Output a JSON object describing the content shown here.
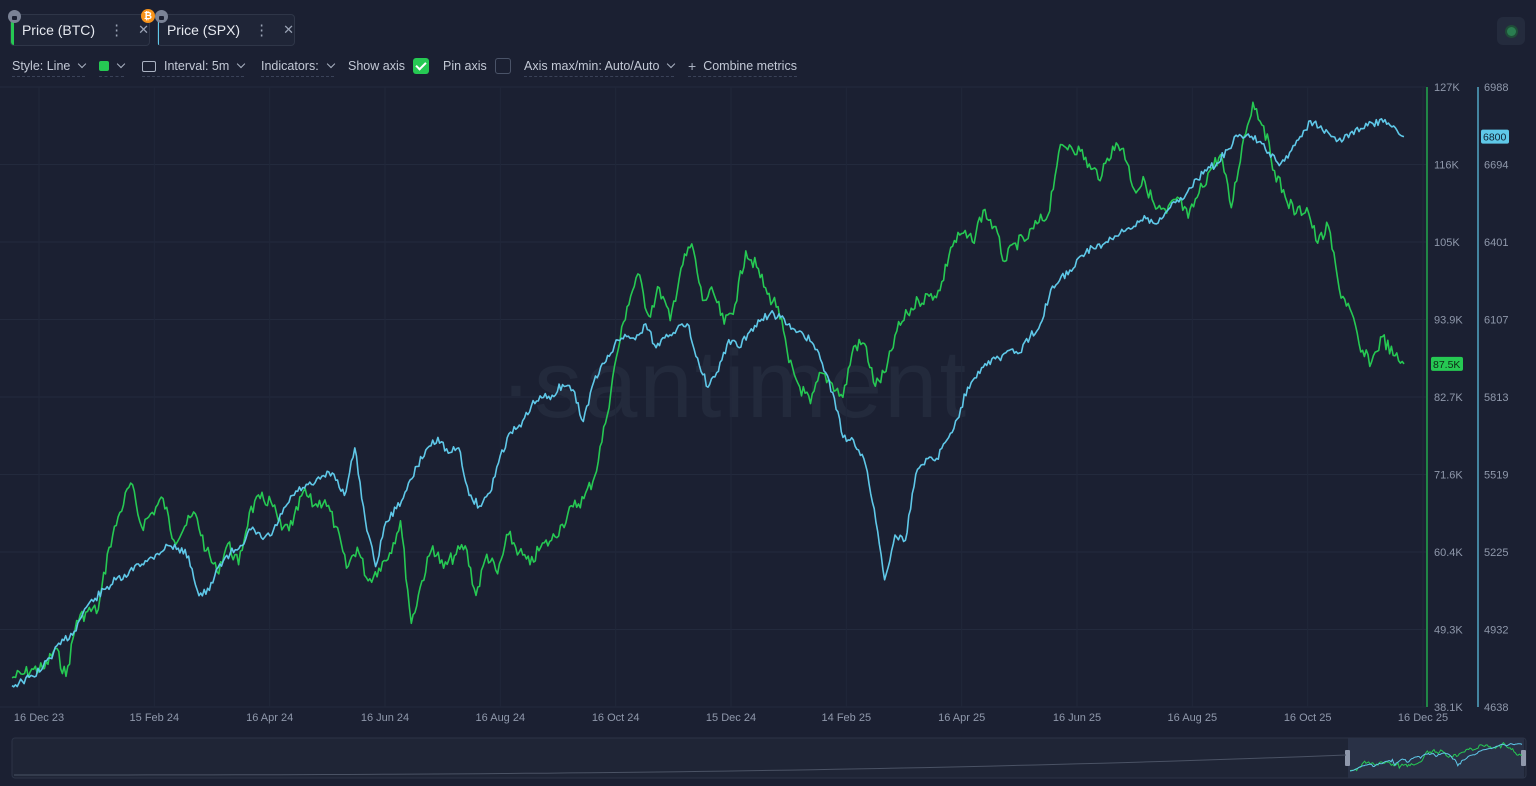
{
  "tabs": [
    {
      "label": "Price (BTC)",
      "color": "#26c953",
      "badge": "₿"
    },
    {
      "label": "Price (SPX)",
      "color": "#5fc8e8"
    }
  ],
  "toolbar": {
    "style": "Style: Line",
    "interval": "Interval: 5m",
    "indicators": "Indicators:",
    "show_axis": "Show axis",
    "show_axis_checked": true,
    "pin_axis": "Pin axis",
    "pin_axis_checked": false,
    "axis_minmax": "Axis max/min: Auto/Auto",
    "combine": "Combine metrics"
  },
  "watermark": "·santiment",
  "chart_data": {
    "type": "line",
    "x_ticks": [
      "16 Dec 23",
      "15 Feb 24",
      "16 Apr 24",
      "16 Jun 24",
      "16 Aug 24",
      "16 Oct 24",
      "15 Dec 24",
      "14 Feb 25",
      "16 Apr 25",
      "16 Jun 25",
      "16 Aug 25",
      "16 Oct 25",
      "16 Dec 25"
    ],
    "axes": [
      {
        "name": "BTC",
        "color": "#26c953",
        "ticks": [
          "127K",
          "116K",
          "105K",
          "93.9K",
          "82.7K",
          "71.6K",
          "60.4K",
          "49.3K",
          "38.1K"
        ],
        "range": [
          38100,
          127000
        ],
        "current": "87.5K"
      },
      {
        "name": "SPX",
        "color": "#5fc8e8",
        "ticks": [
          "6988",
          "6694",
          "6401",
          "6107",
          "5813",
          "5519",
          "5225",
          "4932",
          "4638"
        ],
        "range": [
          4638,
          6988
        ],
        "current": "6800"
      }
    ],
    "series": [
      {
        "name": "Price (BTC)",
        "axis": 0,
        "color": "#26c953",
        "values": [
          42300,
          42800,
          43500,
          43600,
          46500,
          42500,
          50500,
          51800,
          52100,
          61000,
          66000,
          70200,
          64000,
          66000,
          68000,
          62000,
          64000,
          65800,
          60500,
          57500,
          61500,
          58500,
          66000,
          68000,
          67500,
          63500,
          64200,
          69000,
          67000,
          67800,
          64000,
          58000,
          61000,
          56200,
          58000,
          60200,
          64800,
          50100,
          56200,
          61200,
          58000,
          59800,
          61200,
          54100,
          60000,
          57200,
          62800,
          60300,
          58500,
          61000,
          62000,
          64300,
          66800,
          68000,
          71200,
          78800,
          88200,
          95500,
          100200,
          94200,
          98200,
          93500,
          101000,
          104500,
          96400,
          97500,
          93000,
          95800,
          103500,
          101200,
          97300,
          95500,
          87500,
          84000,
          81600,
          86000,
          84500,
          82500,
          89800,
          90200,
          84100,
          86200,
          92000,
          94500,
          96400,
          97000,
          97800,
          104000,
          106000,
          104800,
          109300,
          107000,
          102000,
          104600,
          105100,
          107400,
          108600,
          117600,
          118700,
          117800,
          115200,
          114300,
          118500,
          118200,
          112300,
          113400,
          109500,
          108900,
          111200,
          108200,
          111800,
          115000,
          117300,
          109700,
          118500,
          124800,
          121400,
          115000,
          111200,
          108900,
          109700,
          104600,
          107000,
          98000,
          95200,
          89000,
          87600,
          91200,
          88500,
          87300
        ]
      },
      {
        "name": "Price (SPX)",
        "axis": 1,
        "color": "#5fc8e8",
        "values": [
          4719,
          4735,
          4755,
          4790,
          4845,
          4890,
          4925,
          5010,
          5050,
          5085,
          5120,
          5130,
          5180,
          5190,
          5220,
          5250,
          5240,
          5210,
          5060,
          5080,
          5180,
          5220,
          5250,
          5310,
          5280,
          5290,
          5370,
          5440,
          5470,
          5480,
          5515,
          5520,
          5440,
          5620,
          5350,
          5170,
          5340,
          5390,
          5460,
          5550,
          5620,
          5660,
          5600,
          5620,
          5440,
          5400,
          5450,
          5590,
          5680,
          5700,
          5780,
          5810,
          5820,
          5860,
          5840,
          5720,
          5870,
          5940,
          6010,
          6050,
          6030,
          6090,
          6000,
          6050,
          6070,
          6090,
          5960,
          5850,
          5910,
          6030,
          6000,
          6060,
          6100,
          6130,
          6115,
          6070,
          6060,
          6020,
          5940,
          5830,
          5660,
          5650,
          5580,
          5390,
          5120,
          5290,
          5270,
          5520,
          5580,
          5580,
          5650,
          5730,
          5850,
          5910,
          5950,
          5960,
          5990,
          5980,
          6040,
          6090,
          6220,
          6270,
          6290,
          6350,
          6380,
          6390,
          6410,
          6440,
          6460,
          6500,
          6470,
          6510,
          6550,
          6580,
          6640,
          6670,
          6700,
          6750,
          6800,
          6810,
          6780,
          6740,
          6690,
          6740,
          6800,
          6860,
          6840,
          6800,
          6780,
          6820,
          6830,
          6850,
          6855,
          6840,
          6800
        ]
      }
    ]
  }
}
